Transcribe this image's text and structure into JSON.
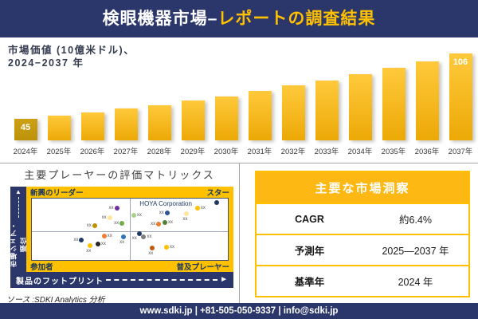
{
  "header": {
    "title_white": "検眼機器市場–",
    "title_gold": "レポートの調査結果"
  },
  "bar_section": {
    "subtitle_line1": "市場価値 (10億米ドル)、",
    "subtitle_line2": "2024−2037 年"
  },
  "matrix": {
    "title": "主要プレーヤーの評価マトリックス",
    "quadrant_top_left": "新興のリーダー",
    "quadrant_top_right": "スター",
    "quadrant_bottom_left": "参加者",
    "quadrant_bottom_right": "普及プレーヤー",
    "x_axis_label": "製品のフットプリント",
    "y_axis_label": "市場シェア・順位",
    "annotation": "HOYA Corporation",
    "point_label": "xx"
  },
  "source": "ソース :SDKI Analytics 分析",
  "insights": {
    "header": "主要な市場洞察",
    "rows": [
      {
        "label": "CAGR",
        "value": "約6.4%"
      },
      {
        "label": "予測年",
        "value": "2025—2037 年"
      },
      {
        "label": "基準年",
        "value": "2024 年"
      }
    ]
  },
  "footer": {
    "contact": "www.sdki.jp | +81-505-050-9337 | info@sdki.jp"
  },
  "colors": {
    "navy": "#2B366B",
    "gold_band": "#FFC000",
    "table_header_gold": "#FDB813",
    "bar_gold": "#F3AE14",
    "bar_first_dark": "#C3970E",
    "title_accent": "#FFC000"
  },
  "chart_data": [
    {
      "type": "bar",
      "title": "市場価値 (10億米ドル)、2024−2037 年",
      "ylabel": "10億米ドル",
      "categories": [
        "2024年",
        "2025年",
        "2026年",
        "2027年",
        "2028年",
        "2029年",
        "2030年",
        "2031年",
        "2032年",
        "2033年",
        "2034年",
        "2035年",
        "2036年",
        "2037年"
      ],
      "values": [
        45,
        48,
        51,
        55,
        58,
        62,
        66,
        71,
        76,
        81,
        87,
        93,
        99,
        106
      ],
      "value_labels_shown": {
        "2024年": "45",
        "2037年": "106"
      },
      "ylim": [
        0,
        115
      ],
      "grid": false,
      "legend": false
    },
    {
      "type": "scatter",
      "title": "主要プレーヤーの評価マトリックス",
      "xlabel": "製品のフットプリント",
      "ylabel": "市場シェア・順位",
      "annotation": "HOYA Corporation",
      "quadrants": [
        "新興のリーダー",
        "スター",
        "参加者",
        "普及プレーヤー"
      ],
      "points": [
        {
          "x": 43.3,
          "y": 16,
          "color": "#7030A0",
          "label_pos": "left"
        },
        {
          "x": 39.7,
          "y": 31,
          "color": "#FFE699",
          "label_pos": "left"
        },
        {
          "x": 46.0,
          "y": 40,
          "color": "#70AD47",
          "label_pos": "left"
        },
        {
          "x": 32.0,
          "y": 44,
          "color": "#BF9000",
          "label_pos": "left"
        },
        {
          "x": 52.0,
          "y": 27,
          "color": "#A9D18E",
          "label_pos": "right"
        },
        {
          "x": 69.0,
          "y": 24,
          "color": "#2F5496",
          "label_pos": "left"
        },
        {
          "x": 79.0,
          "y": 25,
          "color": "#FFE699",
          "label_pos": "below"
        },
        {
          "x": 84.5,
          "y": 16,
          "color": "#FFC000",
          "label_pos": "right"
        },
        {
          "x": 94.5,
          "y": 6,
          "color": "#203864",
          "label_pos": "none"
        },
        {
          "x": 64.7,
          "y": 41,
          "color": "#ED7D31",
          "label_pos": "left"
        },
        {
          "x": 67.9,
          "y": 39,
          "color": "#548235",
          "label_pos": "right"
        },
        {
          "x": 36.9,
          "y": 61,
          "color": "#ED7D31",
          "label_pos": "right"
        },
        {
          "x": 46.8,
          "y": 62,
          "color": "#2E75B6",
          "label_pos": "below"
        },
        {
          "x": 25.4,
          "y": 67,
          "color": "#1F3864",
          "label_pos": "left"
        },
        {
          "x": 33.7,
          "y": 74,
          "color": "#262626",
          "label_pos": "right"
        },
        {
          "x": 29.8,
          "y": 76,
          "color": "#FFC000",
          "label_pos": "below"
        },
        {
          "x": 54.8,
          "y": 57,
          "color": "#1F3864",
          "label_pos": "below-left"
        },
        {
          "x": 57.1,
          "y": 62,
          "color": "#7F7F7F",
          "label_pos": "right"
        },
        {
          "x": 61.5,
          "y": 81,
          "color": "#C45911",
          "label_pos": "below"
        },
        {
          "x": 68.7,
          "y": 79,
          "color": "#FFC000",
          "label_pos": "right"
        }
      ]
    }
  ]
}
